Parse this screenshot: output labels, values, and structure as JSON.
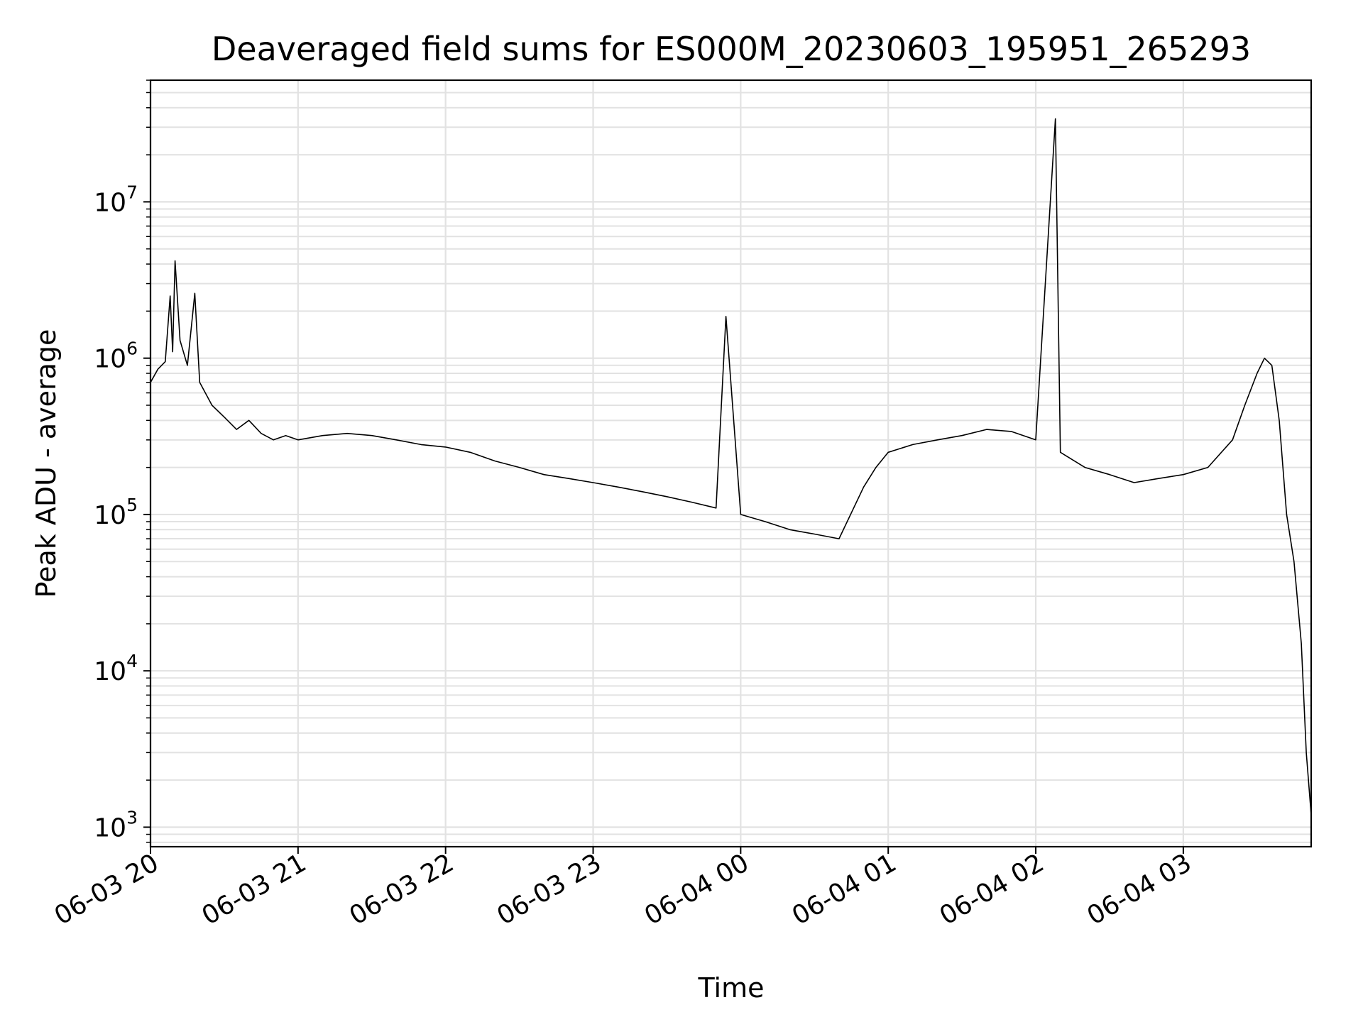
{
  "chart_data": {
    "type": "line",
    "title": "Deaveraged field sums for ES000M_20230603_195951_265293",
    "xlabel": "Time",
    "ylabel": "Peak ADU - average",
    "yscale": "log",
    "ylim": [
      750,
      60000000
    ],
    "xlim": [
      "2023-06-03 20:00",
      "2023-06-04 03:52"
    ],
    "grid": true,
    "line_color": "#000000",
    "grid_color": "#e2e2e2",
    "x_ticks": [
      {
        "time": "2023-06-03 20:00",
        "label": "06-03 20"
      },
      {
        "time": "2023-06-03 21:00",
        "label": "06-03 21"
      },
      {
        "time": "2023-06-03 22:00",
        "label": "06-03 22"
      },
      {
        "time": "2023-06-03 23:00",
        "label": "06-03 23"
      },
      {
        "time": "2023-06-04 00:00",
        "label": "06-04 00"
      },
      {
        "time": "2023-06-04 01:00",
        "label": "06-04 01"
      },
      {
        "time": "2023-06-04 02:00",
        "label": "06-04 02"
      },
      {
        "time": "2023-06-04 03:00",
        "label": "06-04 03"
      }
    ],
    "y_ticks": [
      {
        "value": 1000,
        "base": "10",
        "exp": "3"
      },
      {
        "value": 10000,
        "base": "10",
        "exp": "4"
      },
      {
        "value": 100000,
        "base": "10",
        "exp": "5"
      },
      {
        "value": 1000000,
        "base": "10",
        "exp": "6"
      },
      {
        "value": 10000000,
        "base": "10",
        "exp": "7"
      }
    ],
    "series": [
      {
        "note_points": "time as YYYY-MM-DD HH:MM, value in ADU",
        "points": [
          [
            "2023-06-03 20:00",
            700000
          ],
          [
            "2023-06-03 20:03",
            850000
          ],
          [
            "2023-06-03 20:06",
            950000
          ],
          [
            "2023-06-03 20:08",
            2500000
          ],
          [
            "2023-06-03 20:09",
            1100000
          ],
          [
            "2023-06-03 20:10",
            4200000
          ],
          [
            "2023-06-03 20:12",
            1300000
          ],
          [
            "2023-06-03 20:15",
            900000
          ],
          [
            "2023-06-03 20:18",
            2600000
          ],
          [
            "2023-06-03 20:20",
            700000
          ],
          [
            "2023-06-03 20:25",
            500000
          ],
          [
            "2023-06-03 20:30",
            420000
          ],
          [
            "2023-06-03 20:35",
            350000
          ],
          [
            "2023-06-03 20:40",
            400000
          ],
          [
            "2023-06-03 20:45",
            330000
          ],
          [
            "2023-06-03 20:50",
            300000
          ],
          [
            "2023-06-03 20:55",
            320000
          ],
          [
            "2023-06-03 21:00",
            300000
          ],
          [
            "2023-06-03 21:10",
            320000
          ],
          [
            "2023-06-03 21:20",
            330000
          ],
          [
            "2023-06-03 21:30",
            320000
          ],
          [
            "2023-06-03 21:40",
            300000
          ],
          [
            "2023-06-03 21:50",
            280000
          ],
          [
            "2023-06-03 22:00",
            270000
          ],
          [
            "2023-06-03 22:10",
            250000
          ],
          [
            "2023-06-03 22:20",
            220000
          ],
          [
            "2023-06-03 22:30",
            200000
          ],
          [
            "2023-06-03 22:40",
            180000
          ],
          [
            "2023-06-03 22:50",
            170000
          ],
          [
            "2023-06-03 23:00",
            160000
          ],
          [
            "2023-06-03 23:10",
            150000
          ],
          [
            "2023-06-03 23:20",
            140000
          ],
          [
            "2023-06-03 23:30",
            130000
          ],
          [
            "2023-06-03 23:40",
            120000
          ],
          [
            "2023-06-03 23:50",
            110000
          ],
          [
            "2023-06-03 23:54",
            1850000
          ],
          [
            "2023-06-04 00:00",
            100000
          ],
          [
            "2023-06-04 00:10",
            90000
          ],
          [
            "2023-06-04 00:20",
            80000
          ],
          [
            "2023-06-04 00:30",
            75000
          ],
          [
            "2023-06-04 00:40",
            70000
          ],
          [
            "2023-06-04 00:50",
            150000
          ],
          [
            "2023-06-04 00:55",
            200000
          ],
          [
            "2023-06-04 01:00",
            250000
          ],
          [
            "2023-06-04 01:10",
            280000
          ],
          [
            "2023-06-04 01:20",
            300000
          ],
          [
            "2023-06-04 01:30",
            320000
          ],
          [
            "2023-06-04 01:40",
            350000
          ],
          [
            "2023-06-04 01:50",
            340000
          ],
          [
            "2023-06-04 02:00",
            300000
          ],
          [
            "2023-06-04 02:08",
            34000000
          ],
          [
            "2023-06-04 02:10",
            250000
          ],
          [
            "2023-06-04 02:20",
            200000
          ],
          [
            "2023-06-04 02:30",
            180000
          ],
          [
            "2023-06-04 02:40",
            160000
          ],
          [
            "2023-06-04 02:50",
            170000
          ],
          [
            "2023-06-04 03:00",
            180000
          ],
          [
            "2023-06-04 03:10",
            200000
          ],
          [
            "2023-06-04 03:20",
            300000
          ],
          [
            "2023-06-04 03:25",
            500000
          ],
          [
            "2023-06-04 03:30",
            800000
          ],
          [
            "2023-06-04 03:33",
            1000000
          ],
          [
            "2023-06-04 03:36",
            900000
          ],
          [
            "2023-06-04 03:39",
            400000
          ],
          [
            "2023-06-04 03:42",
            100000
          ],
          [
            "2023-06-04 03:45",
            50000
          ],
          [
            "2023-06-04 03:48",
            15000
          ],
          [
            "2023-06-04 03:50",
            3000
          ],
          [
            "2023-06-04 03:52",
            1200
          ]
        ]
      }
    ]
  }
}
